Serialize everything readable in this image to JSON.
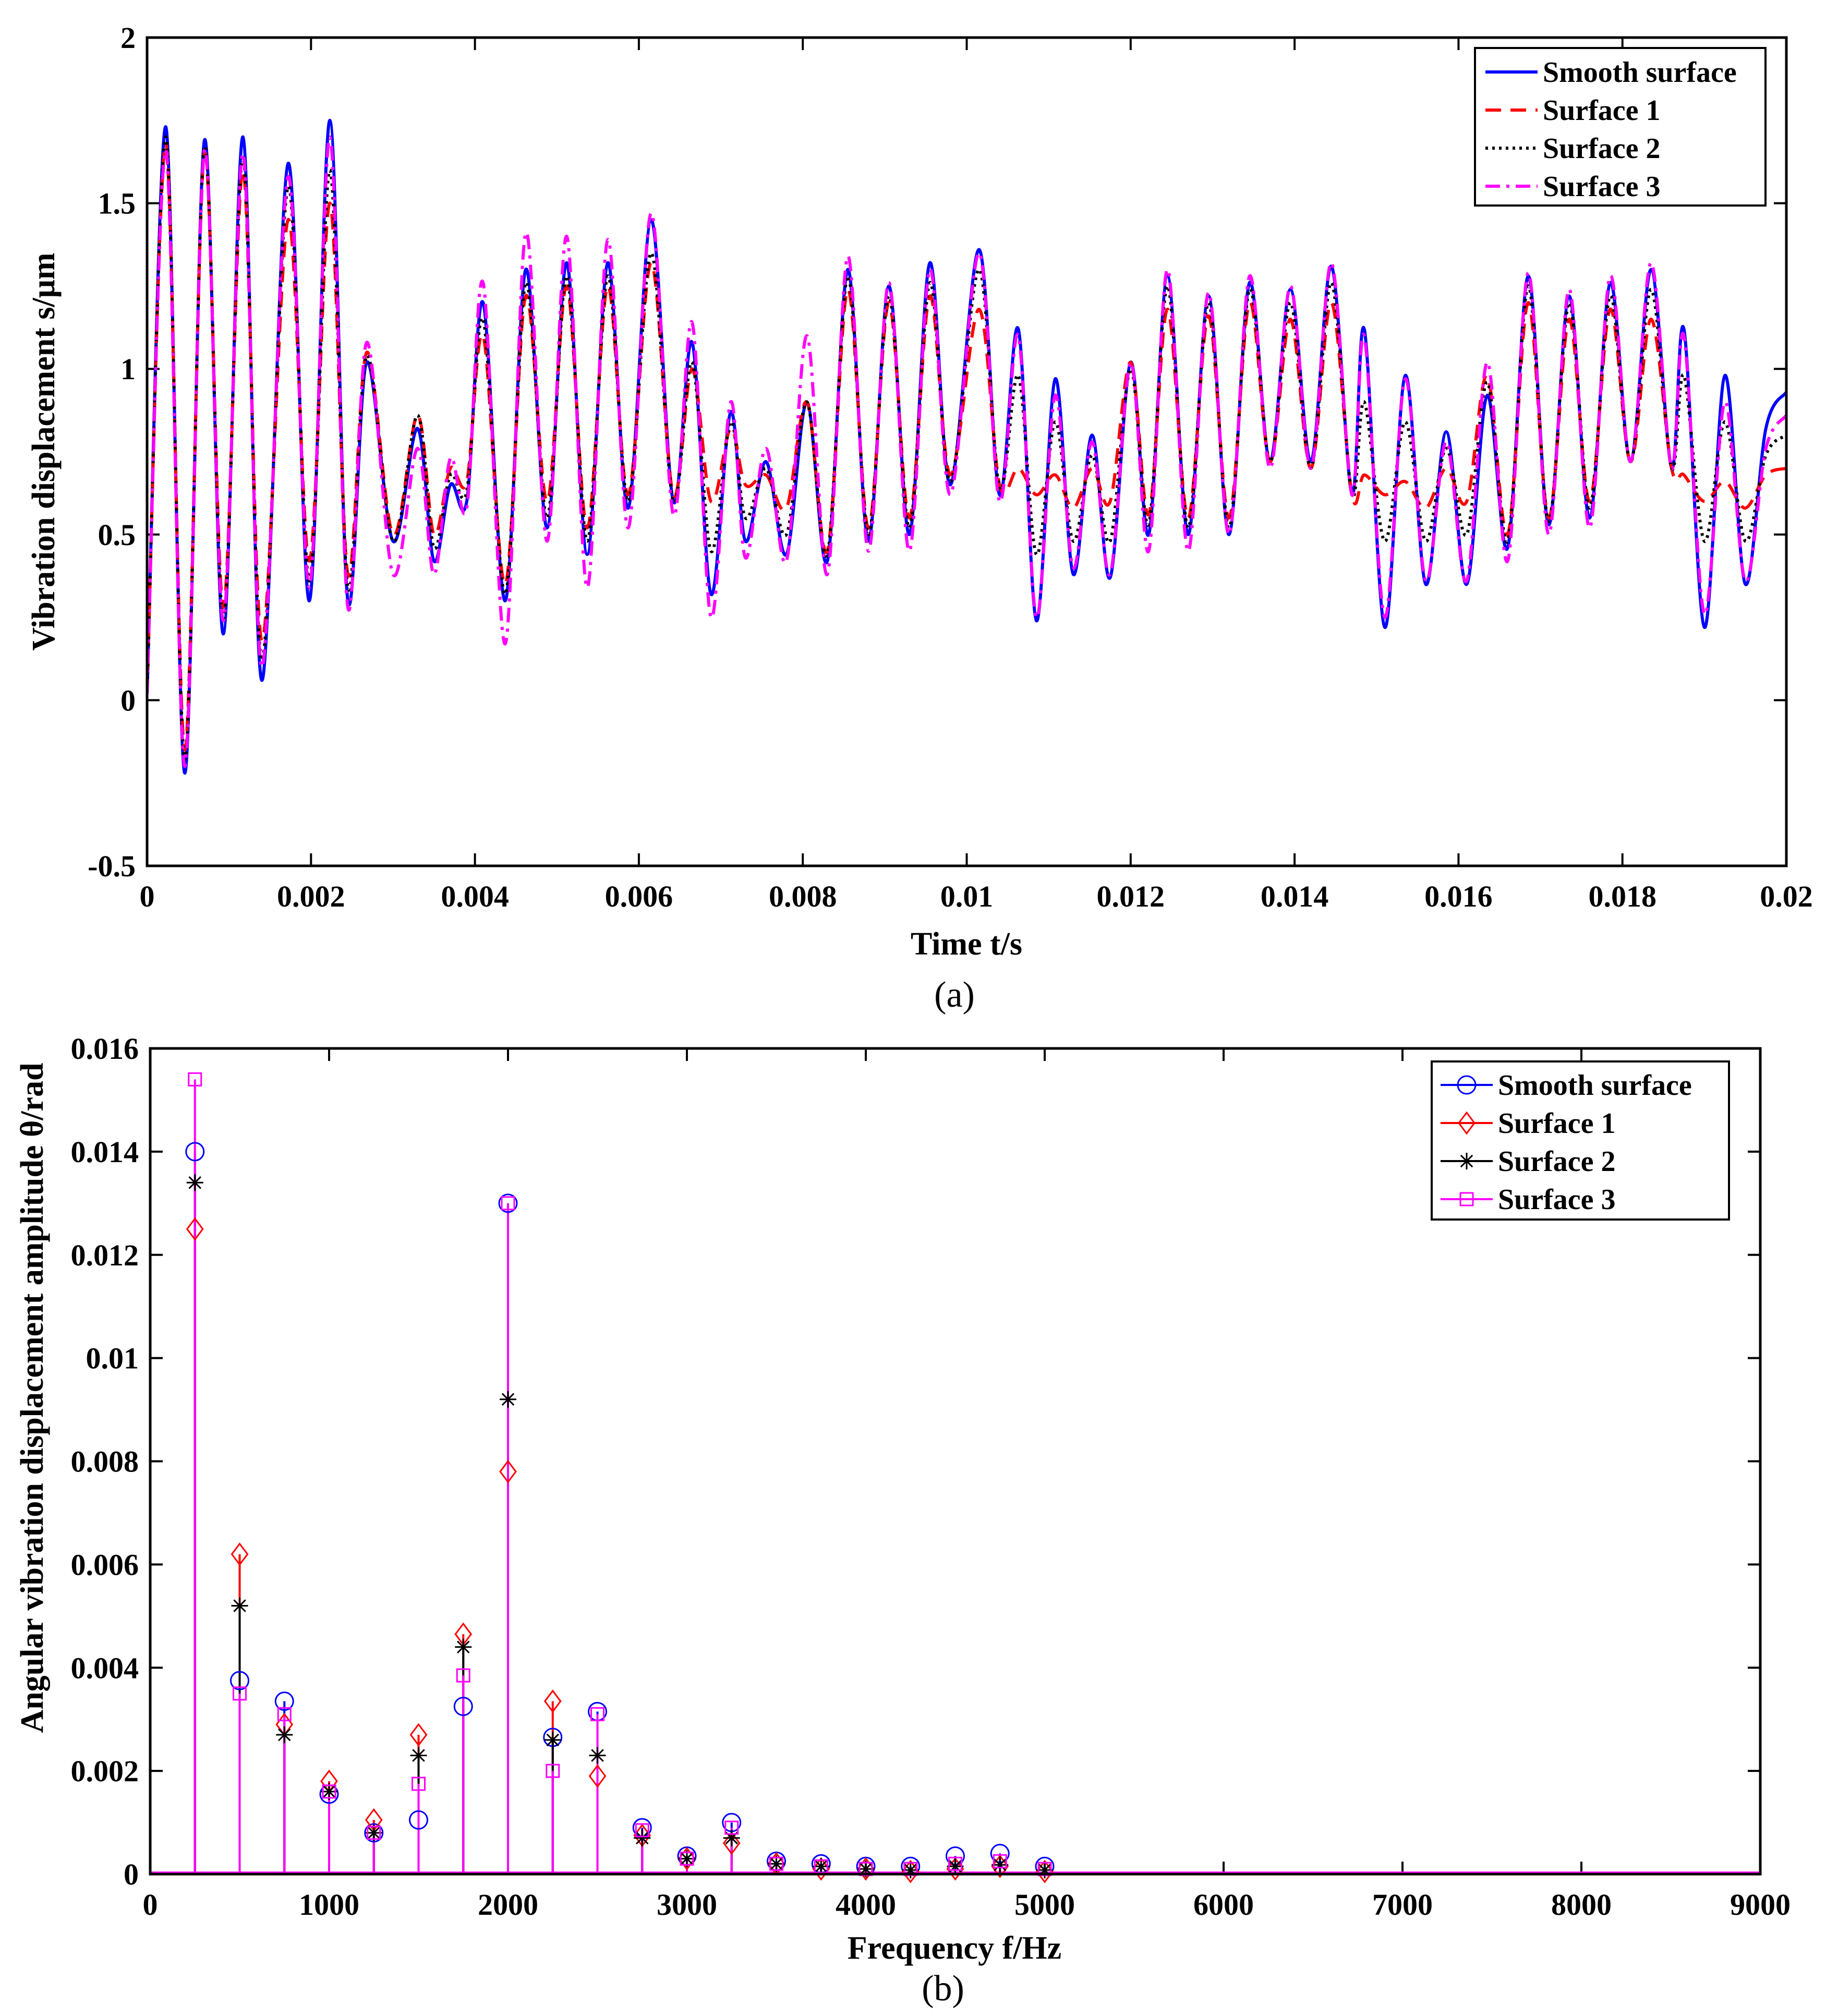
{
  "chart_data": [
    {
      "type": "line",
      "caption": "(a)",
      "xlabel": "Time t/s",
      "ylabel": "Vibration displacement s/μm",
      "xlim": [
        0,
        0.02
      ],
      "ylim": [
        -0.5,
        2
      ],
      "xticks": [
        "0",
        "0.002",
        "0.004",
        "0.006",
        "0.008",
        "0.01",
        "0.012",
        "0.014",
        "0.016",
        "0.018",
        "0.02"
      ],
      "xtick_values": [
        0,
        0.002,
        0.004,
        0.006,
        0.008,
        0.01,
        0.012,
        0.014,
        0.016,
        0.018,
        0.02
      ],
      "yticks": [
        "-0.5",
        "0",
        "0.5",
        "1",
        "1.5",
        "2"
      ],
      "ytick_values": [
        -0.5,
        0,
        0.5,
        1,
        1.5,
        2
      ],
      "legend_position": "top-right",
      "series": [
        {
          "name": "Smooth surface",
          "color": "#0000ff",
          "dash": "solid",
          "x": [
            0,
            0.00023,
            0.00046,
            0.0007,
            0.00093,
            0.00117,
            0.0014,
            0.00172,
            0.00198,
            0.00223,
            0.00245,
            0.00268,
            0.003,
            0.0033,
            0.0035,
            0.0037,
            0.0039,
            0.0041,
            0.00437,
            0.00462,
            0.00488,
            0.00512,
            0.00537,
            0.00562,
            0.00587,
            0.00615,
            0.00642,
            0.00665,
            0.00688,
            0.00712,
            0.0073,
            0.00755,
            0.0078,
            0.00805,
            0.0083,
            0.00855,
            0.0088,
            0.00905,
            0.0093,
            0.00955,
            0.0098,
            0.01015,
            0.0104,
            0.01063,
            0.01085,
            0.01108,
            0.0113,
            0.01153,
            0.01175,
            0.012,
            0.01222,
            0.01245,
            0.0127,
            0.01295,
            0.0132,
            0.01345,
            0.0137,
            0.01395,
            0.0142,
            0.01445,
            0.0147,
            0.01485,
            0.0151,
            0.01535,
            0.0156,
            0.01585,
            0.0161,
            0.01635,
            0.0166,
            0.01685,
            0.0171,
            0.01735,
            0.0176,
            0.01785,
            0.0181,
            0.01835,
            0.0186,
            0.01875,
            0.019,
            0.01925,
            0.0195,
            0.01975,
            0.02
          ],
          "y": [
            0.02,
            1.73,
            -0.22,
            1.69,
            0.2,
            1.7,
            0.06,
            1.62,
            0.3,
            1.75,
            0.3,
            1.02,
            0.48,
            0.82,
            0.42,
            0.65,
            0.6,
            1.2,
            0.3,
            1.3,
            0.52,
            1.32,
            0.44,
            1.32,
            0.58,
            1.45,
            0.6,
            1.08,
            0.32,
            0.87,
            0.48,
            0.72,
            0.44,
            0.9,
            0.42,
            1.3,
            0.48,
            1.25,
            0.5,
            1.32,
            0.65,
            1.36,
            0.62,
            1.12,
            0.24,
            0.97,
            0.38,
            0.8,
            0.37,
            1.02,
            0.5,
            1.28,
            0.5,
            1.22,
            0.5,
            1.26,
            0.72,
            1.24,
            0.72,
            1.31,
            0.62,
            1.12,
            0.22,
            0.98,
            0.35,
            0.81,
            0.35,
            0.92,
            0.46,
            1.28,
            0.53,
            1.22,
            0.55,
            1.26,
            0.72,
            1.3,
            0.7,
            1.12,
            0.22,
            0.98,
            0.35,
            0.82,
            0.93
          ]
        },
        {
          "name": "Surface 1",
          "color": "#ff0000",
          "dash": "dashed",
          "x": [
            0,
            0.00023,
            0.00046,
            0.0007,
            0.00093,
            0.00117,
            0.0014,
            0.00172,
            0.00198,
            0.00223,
            0.00245,
            0.00268,
            0.003,
            0.0033,
            0.0035,
            0.0037,
            0.0039,
            0.0041,
            0.00437,
            0.00462,
            0.00488,
            0.00512,
            0.00537,
            0.00562,
            0.00587,
            0.00615,
            0.00642,
            0.00665,
            0.00688,
            0.00712,
            0.0073,
            0.00755,
            0.0078,
            0.00805,
            0.0083,
            0.00855,
            0.0088,
            0.00905,
            0.0093,
            0.00955,
            0.0098,
            0.01015,
            0.0104,
            0.01063,
            0.01085,
            0.01108,
            0.0113,
            0.01153,
            0.01175,
            0.012,
            0.01222,
            0.01245,
            0.0127,
            0.01295,
            0.0132,
            0.01345,
            0.0137,
            0.01395,
            0.0142,
            0.01445,
            0.0147,
            0.01485,
            0.0151,
            0.01535,
            0.0156,
            0.01585,
            0.0161,
            0.01635,
            0.0166,
            0.01685,
            0.0171,
            0.01735,
            0.0176,
            0.01785,
            0.0181,
            0.01835,
            0.0186,
            0.01875,
            0.019,
            0.01925,
            0.0195,
            0.01975,
            0.02
          ],
          "y": [
            0.02,
            1.68,
            -0.15,
            1.65,
            0.28,
            1.6,
            0.18,
            1.45,
            0.42,
            1.5,
            0.38,
            1.05,
            0.5,
            0.86,
            0.5,
            0.7,
            0.66,
            1.1,
            0.35,
            1.22,
            0.6,
            1.25,
            0.52,
            1.25,
            0.62,
            1.32,
            0.62,
            1.0,
            0.6,
            0.82,
            0.65,
            0.68,
            0.58,
            0.9,
            0.45,
            1.24,
            0.52,
            1.2,
            0.55,
            1.22,
            0.68,
            1.18,
            0.65,
            0.7,
            0.62,
            0.68,
            0.58,
            0.7,
            0.6,
            1.02,
            0.56,
            1.18,
            0.55,
            1.16,
            0.55,
            1.2,
            0.72,
            1.15,
            0.7,
            1.2,
            0.62,
            0.68,
            0.62,
            0.66,
            0.58,
            0.7,
            0.6,
            0.98,
            0.5,
            1.2,
            0.55,
            1.15,
            0.6,
            1.18,
            0.72,
            1.15,
            0.7,
            0.68,
            0.6,
            0.66,
            0.58,
            0.68,
            0.7
          ]
        },
        {
          "name": "Surface 2",
          "color": "#000000",
          "dash": "dotted",
          "x": [
            0,
            0.00023,
            0.00046,
            0.0007,
            0.00093,
            0.00117,
            0.0014,
            0.00172,
            0.00198,
            0.00223,
            0.00245,
            0.00268,
            0.003,
            0.0033,
            0.0035,
            0.0037,
            0.0039,
            0.0041,
            0.00437,
            0.00462,
            0.00488,
            0.00512,
            0.00537,
            0.00562,
            0.00587,
            0.00615,
            0.00642,
            0.00665,
            0.00688,
            0.00712,
            0.0073,
            0.00755,
            0.0078,
            0.00805,
            0.0083,
            0.00855,
            0.0088,
            0.00905,
            0.0093,
            0.00955,
            0.0098,
            0.01015,
            0.0104,
            0.01063,
            0.01085,
            0.01108,
            0.0113,
            0.01153,
            0.01175,
            0.012,
            0.01222,
            0.01245,
            0.0127,
            0.01295,
            0.0132,
            0.01345,
            0.0137,
            0.01395,
            0.0142,
            0.01445,
            0.0147,
            0.01485,
            0.0151,
            0.01535,
            0.0156,
            0.01585,
            0.0161,
            0.01635,
            0.0166,
            0.01685,
            0.0171,
            0.01735,
            0.0176,
            0.01785,
            0.0181,
            0.01835,
            0.0186,
            0.01875,
            0.019,
            0.01925,
            0.0195,
            0.01975,
            0.02
          ],
          "y": [
            0.02,
            1.7,
            -0.18,
            1.67,
            0.24,
            1.64,
            0.12,
            1.55,
            0.36,
            1.6,
            0.34,
            1.04,
            0.48,
            0.86,
            0.46,
            0.68,
            0.63,
            1.15,
            0.32,
            1.26,
            0.55,
            1.28,
            0.48,
            1.28,
            0.6,
            1.35,
            0.6,
            1.02,
            0.45,
            0.84,
            0.55,
            0.7,
            0.5,
            0.9,
            0.44,
            1.28,
            0.5,
            1.22,
            0.52,
            1.26,
            0.66,
            1.3,
            0.64,
            0.98,
            0.44,
            0.84,
            0.48,
            0.74,
            0.48,
            1.0,
            0.53,
            1.25,
            0.52,
            1.2,
            0.52,
            1.24,
            0.72,
            1.2,
            0.7,
            1.26,
            0.62,
            0.9,
            0.48,
            0.84,
            0.48,
            0.76,
            0.5,
            0.96,
            0.48,
            1.25,
            0.54,
            1.2,
            0.58,
            1.22,
            0.72,
            1.24,
            0.7,
            0.98,
            0.48,
            0.84,
            0.48,
            0.74,
            0.8
          ]
        },
        {
          "name": "Surface 3",
          "color": "#ff00ff",
          "dash": "dashdot",
          "x": [
            0,
            0.00023,
            0.00046,
            0.0007,
            0.00093,
            0.00117,
            0.0014,
            0.00172,
            0.00198,
            0.00223,
            0.00245,
            0.00268,
            0.003,
            0.0033,
            0.0035,
            0.0037,
            0.0039,
            0.0041,
            0.00437,
            0.00462,
            0.00488,
            0.00512,
            0.00537,
            0.00562,
            0.00587,
            0.00615,
            0.00642,
            0.00665,
            0.00688,
            0.00712,
            0.0073,
            0.00755,
            0.0078,
            0.00805,
            0.0083,
            0.00855,
            0.0088,
            0.00905,
            0.0093,
            0.00955,
            0.0098,
            0.01015,
            0.0104,
            0.01063,
            0.01085,
            0.01108,
            0.0113,
            0.01153,
            0.01175,
            0.012,
            0.01222,
            0.01245,
            0.0127,
            0.01295,
            0.0132,
            0.01345,
            0.0137,
            0.01395,
            0.0142,
            0.01445,
            0.0147,
            0.01485,
            0.0151,
            0.01535,
            0.0156,
            0.01585,
            0.0161,
            0.01635,
            0.0166,
            0.01685,
            0.0171,
            0.01735,
            0.0176,
            0.01785,
            0.0181,
            0.01835,
            0.0186,
            0.01875,
            0.019,
            0.01925,
            0.0195,
            0.01975,
            0.02
          ],
          "y": [
            0.02,
            1.66,
            -0.2,
            1.66,
            0.24,
            1.65,
            0.1,
            1.58,
            0.34,
            1.7,
            0.28,
            1.08,
            0.38,
            0.76,
            0.38,
            0.73,
            0.58,
            1.26,
            0.17,
            1.41,
            0.48,
            1.4,
            0.34,
            1.39,
            0.52,
            1.47,
            0.56,
            1.14,
            0.25,
            0.9,
            0.43,
            0.76,
            0.42,
            1.1,
            0.38,
            1.34,
            0.45,
            1.26,
            0.45,
            1.3,
            0.62,
            1.35,
            0.6,
            1.1,
            0.25,
            0.92,
            0.4,
            0.78,
            0.38,
            1.02,
            0.45,
            1.3,
            0.45,
            1.23,
            0.5,
            1.28,
            0.7,
            1.25,
            0.7,
            1.32,
            0.62,
            1.1,
            0.25,
            0.97,
            0.36,
            0.78,
            0.36,
            1.02,
            0.42,
            1.29,
            0.5,
            1.24,
            0.52,
            1.28,
            0.72,
            1.32,
            0.7,
            1.1,
            0.26,
            0.9,
            0.36,
            0.76,
            0.86
          ]
        }
      ]
    },
    {
      "type": "stem",
      "caption": "(b)",
      "xlabel": "Frequency f/Hz",
      "ylabel": "Angular vibration displacement amplitude θ/rad",
      "xlim": [
        0,
        9000
      ],
      "ylim": [
        0,
        0.016
      ],
      "xticks": [
        "0",
        "1000",
        "2000",
        "3000",
        "4000",
        "5000",
        "6000",
        "7000",
        "8000",
        "9000"
      ],
      "xtick_values": [
        0,
        1000,
        2000,
        3000,
        4000,
        5000,
        6000,
        7000,
        8000,
        9000
      ],
      "yticks": [
        "0",
        "0.002",
        "0.004",
        "0.006",
        "0.008",
        "0.01",
        "0.012",
        "0.014",
        "0.016"
      ],
      "ytick_values": [
        0,
        0.002,
        0.004,
        0.006,
        0.008,
        0.01,
        0.012,
        0.014,
        0.016
      ],
      "legend_position": "top-right",
      "x": [
        250,
        500,
        750,
        1000,
        1250,
        1500,
        1750,
        2000,
        2250,
        2500,
        2750,
        3000,
        3250,
        3500,
        3750,
        4000,
        4250,
        4500,
        4750,
        5000
      ],
      "series": [
        {
          "name": "Smooth surface",
          "color": "#0000ff",
          "marker": "circle",
          "values": [
            0.014,
            0.00375,
            0.00335,
            0.00155,
            0.0008,
            0.00105,
            0.00325,
            0.013,
            0.00265,
            0.00315,
            0.0009,
            0.00035,
            0.001,
            0.00025,
            0.0002,
            0.00015,
            0.00015,
            0.00035,
            0.0004,
            0.00015
          ]
        },
        {
          "name": "Surface 1",
          "color": "#ff0000",
          "marker": "diamond",
          "values": [
            0.0125,
            0.0062,
            0.0029,
            0.0018,
            0.00105,
            0.0027,
            0.00465,
            0.0078,
            0.00335,
            0.0019,
            0.00075,
            0.0003,
            0.0006,
            0.0002,
            0.0001,
            0.0001,
            5e-05,
            0.0001,
            0.00015,
            5e-05
          ]
        },
        {
          "name": "Surface 2",
          "color": "#000000",
          "marker": "asterisk",
          "values": [
            0.0134,
            0.0052,
            0.0027,
            0.0016,
            0.0008,
            0.0023,
            0.0044,
            0.0092,
            0.0026,
            0.0023,
            0.0007,
            0.0003,
            0.0007,
            0.0002,
            0.00015,
            0.0001,
            8e-05,
            0.00015,
            0.00018,
            8e-05
          ]
        },
        {
          "name": "Surface 3",
          "color": "#ff00ff",
          "marker": "square",
          "values": [
            0.0154,
            0.0035,
            0.0031,
            0.0016,
            0.0008,
            0.00175,
            0.00385,
            0.013,
            0.002,
            0.0031,
            0.00085,
            0.0003,
            0.0009,
            0.0002,
            0.00015,
            0.0001,
            0.0001,
            0.0002,
            0.00025,
            0.0001
          ]
        }
      ]
    }
  ]
}
